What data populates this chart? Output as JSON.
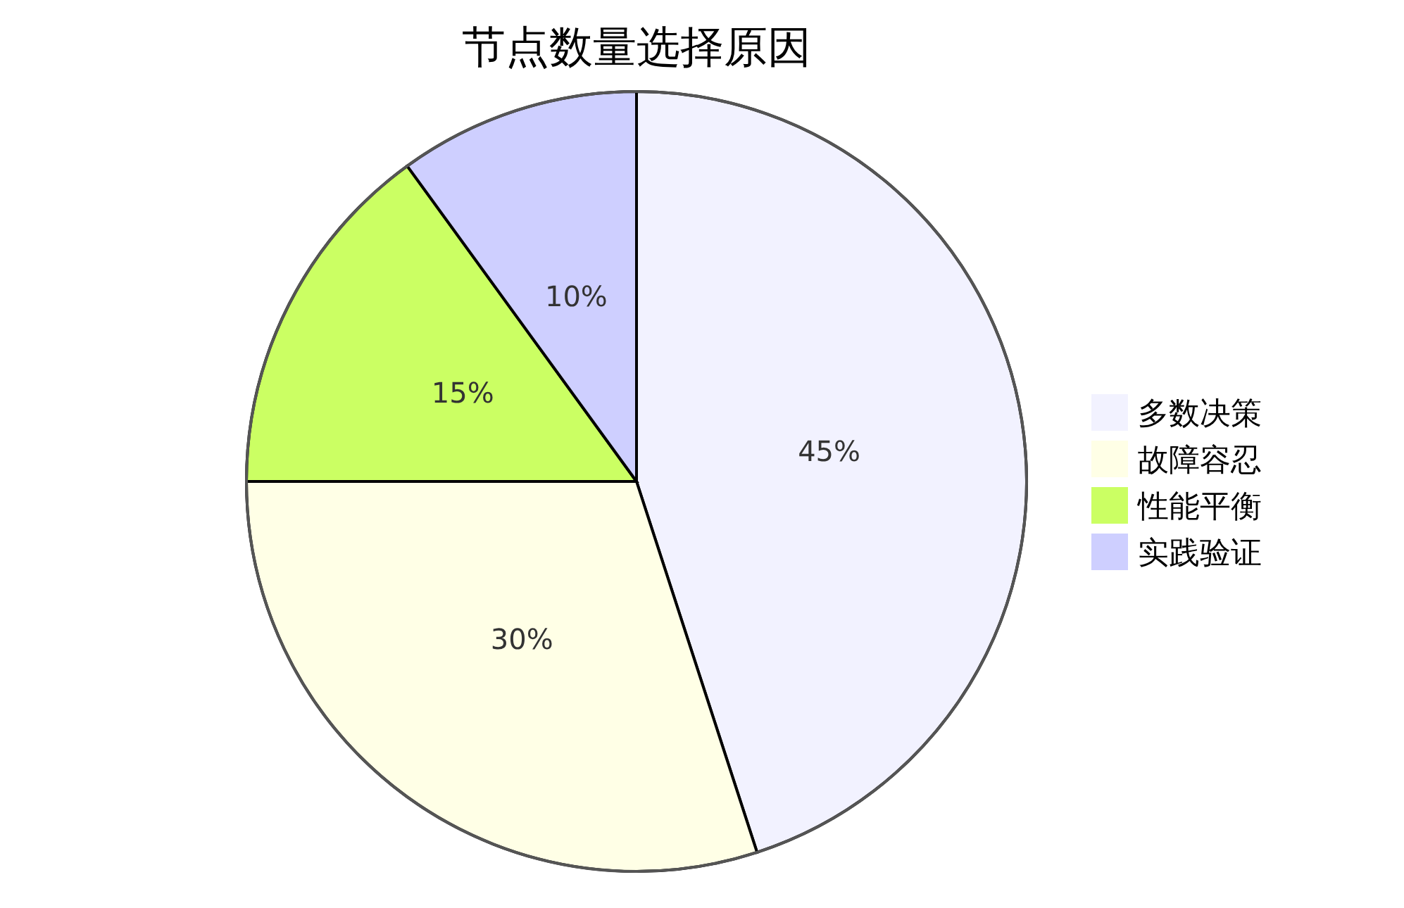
{
  "chart_data": {
    "type": "pie",
    "title": "节点数量选择原因",
    "categories": [
      "多数决策",
      "故障容忍",
      "性能平衡",
      "实践验证"
    ],
    "values": [
      45,
      30,
      15,
      10
    ],
    "colors": [
      "#f2f2ff",
      "#ffffe6",
      "#cbff63",
      "#cecfff"
    ],
    "value_labels": [
      "45%",
      "30%",
      "15%",
      "10%"
    ],
    "legend": "right"
  }
}
